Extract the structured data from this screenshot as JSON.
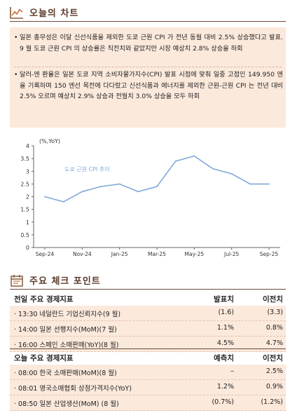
{
  "section1": {
    "title": "오늘의 차트",
    "icon": "chart-icon"
  },
  "bullets": [
    "일본 총무성은 이달 신선식품을 제외한 도쿄 근원 CPI 가 전년 동월 대비 2.5% 상승했다고 발표. 9 월 도쿄 근원 CPI 의 상승률은 직전치와 같았지만 시장 예상치 2.8% 상승을 하회",
    "달러-엔 환율은 일본 도쿄 지역 소비자물가지수(CPI) 발표 시점에 맞춰 일중 고점인 149.950 엔을 기록하며 150 엔선 목전에 다다랐고 신선식품과 에너지를 제외한 근원-근원 CPI 는 전년 대비 2.5% 오르며 예상치 2.9% 상승과 전월치 3.0% 상승을 모두 하회"
  ],
  "chart_data": {
    "type": "line",
    "ylabel": "(%,YoY)",
    "series_label": "도쿄 근원 CPI 추이",
    "x_ticks": [
      "Sep-24",
      "Nov-24",
      "Jan-25",
      "Mar-25",
      "May-25",
      "Jul-25",
      "Sep-25"
    ],
    "x": [
      "Sep-24",
      "Oct-24",
      "Nov-24",
      "Dec-24",
      "Jan-25",
      "Feb-25",
      "Mar-25",
      "Apr-25",
      "May-25",
      "Jun-25",
      "Jul-25",
      "Aug-25",
      "Sep-25"
    ],
    "y": [
      2.0,
      1.8,
      2.2,
      2.4,
      2.5,
      2.2,
      2.4,
      3.4,
      3.6,
      3.1,
      2.9,
      2.5,
      2.5
    ],
    "ylim": [
      0,
      4
    ],
    "y_ticks": [
      "0",
      "0.5",
      "1",
      "1.5",
      "2",
      "2.5",
      "3",
      "3.5",
      "4"
    ],
    "line_color": "#7fa9d8",
    "grid": false
  },
  "section2": {
    "title": "주요 체크 포인트",
    "icon": "calendar-icon"
  },
  "table1": {
    "headers": [
      "전일 주요 경제지표",
      "발표치",
      "이전치"
    ],
    "rows": [
      [
        "· 13:30 네덜란드 기업신뢰지수(9 월)",
        "(1.6)",
        "(3.3)"
      ],
      [
        "· 14:00 일본 선행지수(MoM)(7 월)",
        "1.1%",
        "0.8%"
      ],
      [
        "· 16:00 스페인 소매판매(YoY)(8 월)",
        "4.5%",
        "4.7%"
      ]
    ]
  },
  "table2": {
    "headers": [
      "오늘 주요 경제지표",
      "예측치",
      "이전치"
    ],
    "rows": [
      [
        "· 08:00 한국 소매판매(MoM)(8 월)",
        "–",
        "2.5%"
      ],
      [
        "· 08:01 영국소매협회 상점가격지수(YoY)",
        "1.2%",
        "0.9%"
      ],
      [
        "· 08:50 일본 산업생산(MoM) (8 월)",
        "(0.7%)",
        "(1.2%)"
      ]
    ]
  }
}
